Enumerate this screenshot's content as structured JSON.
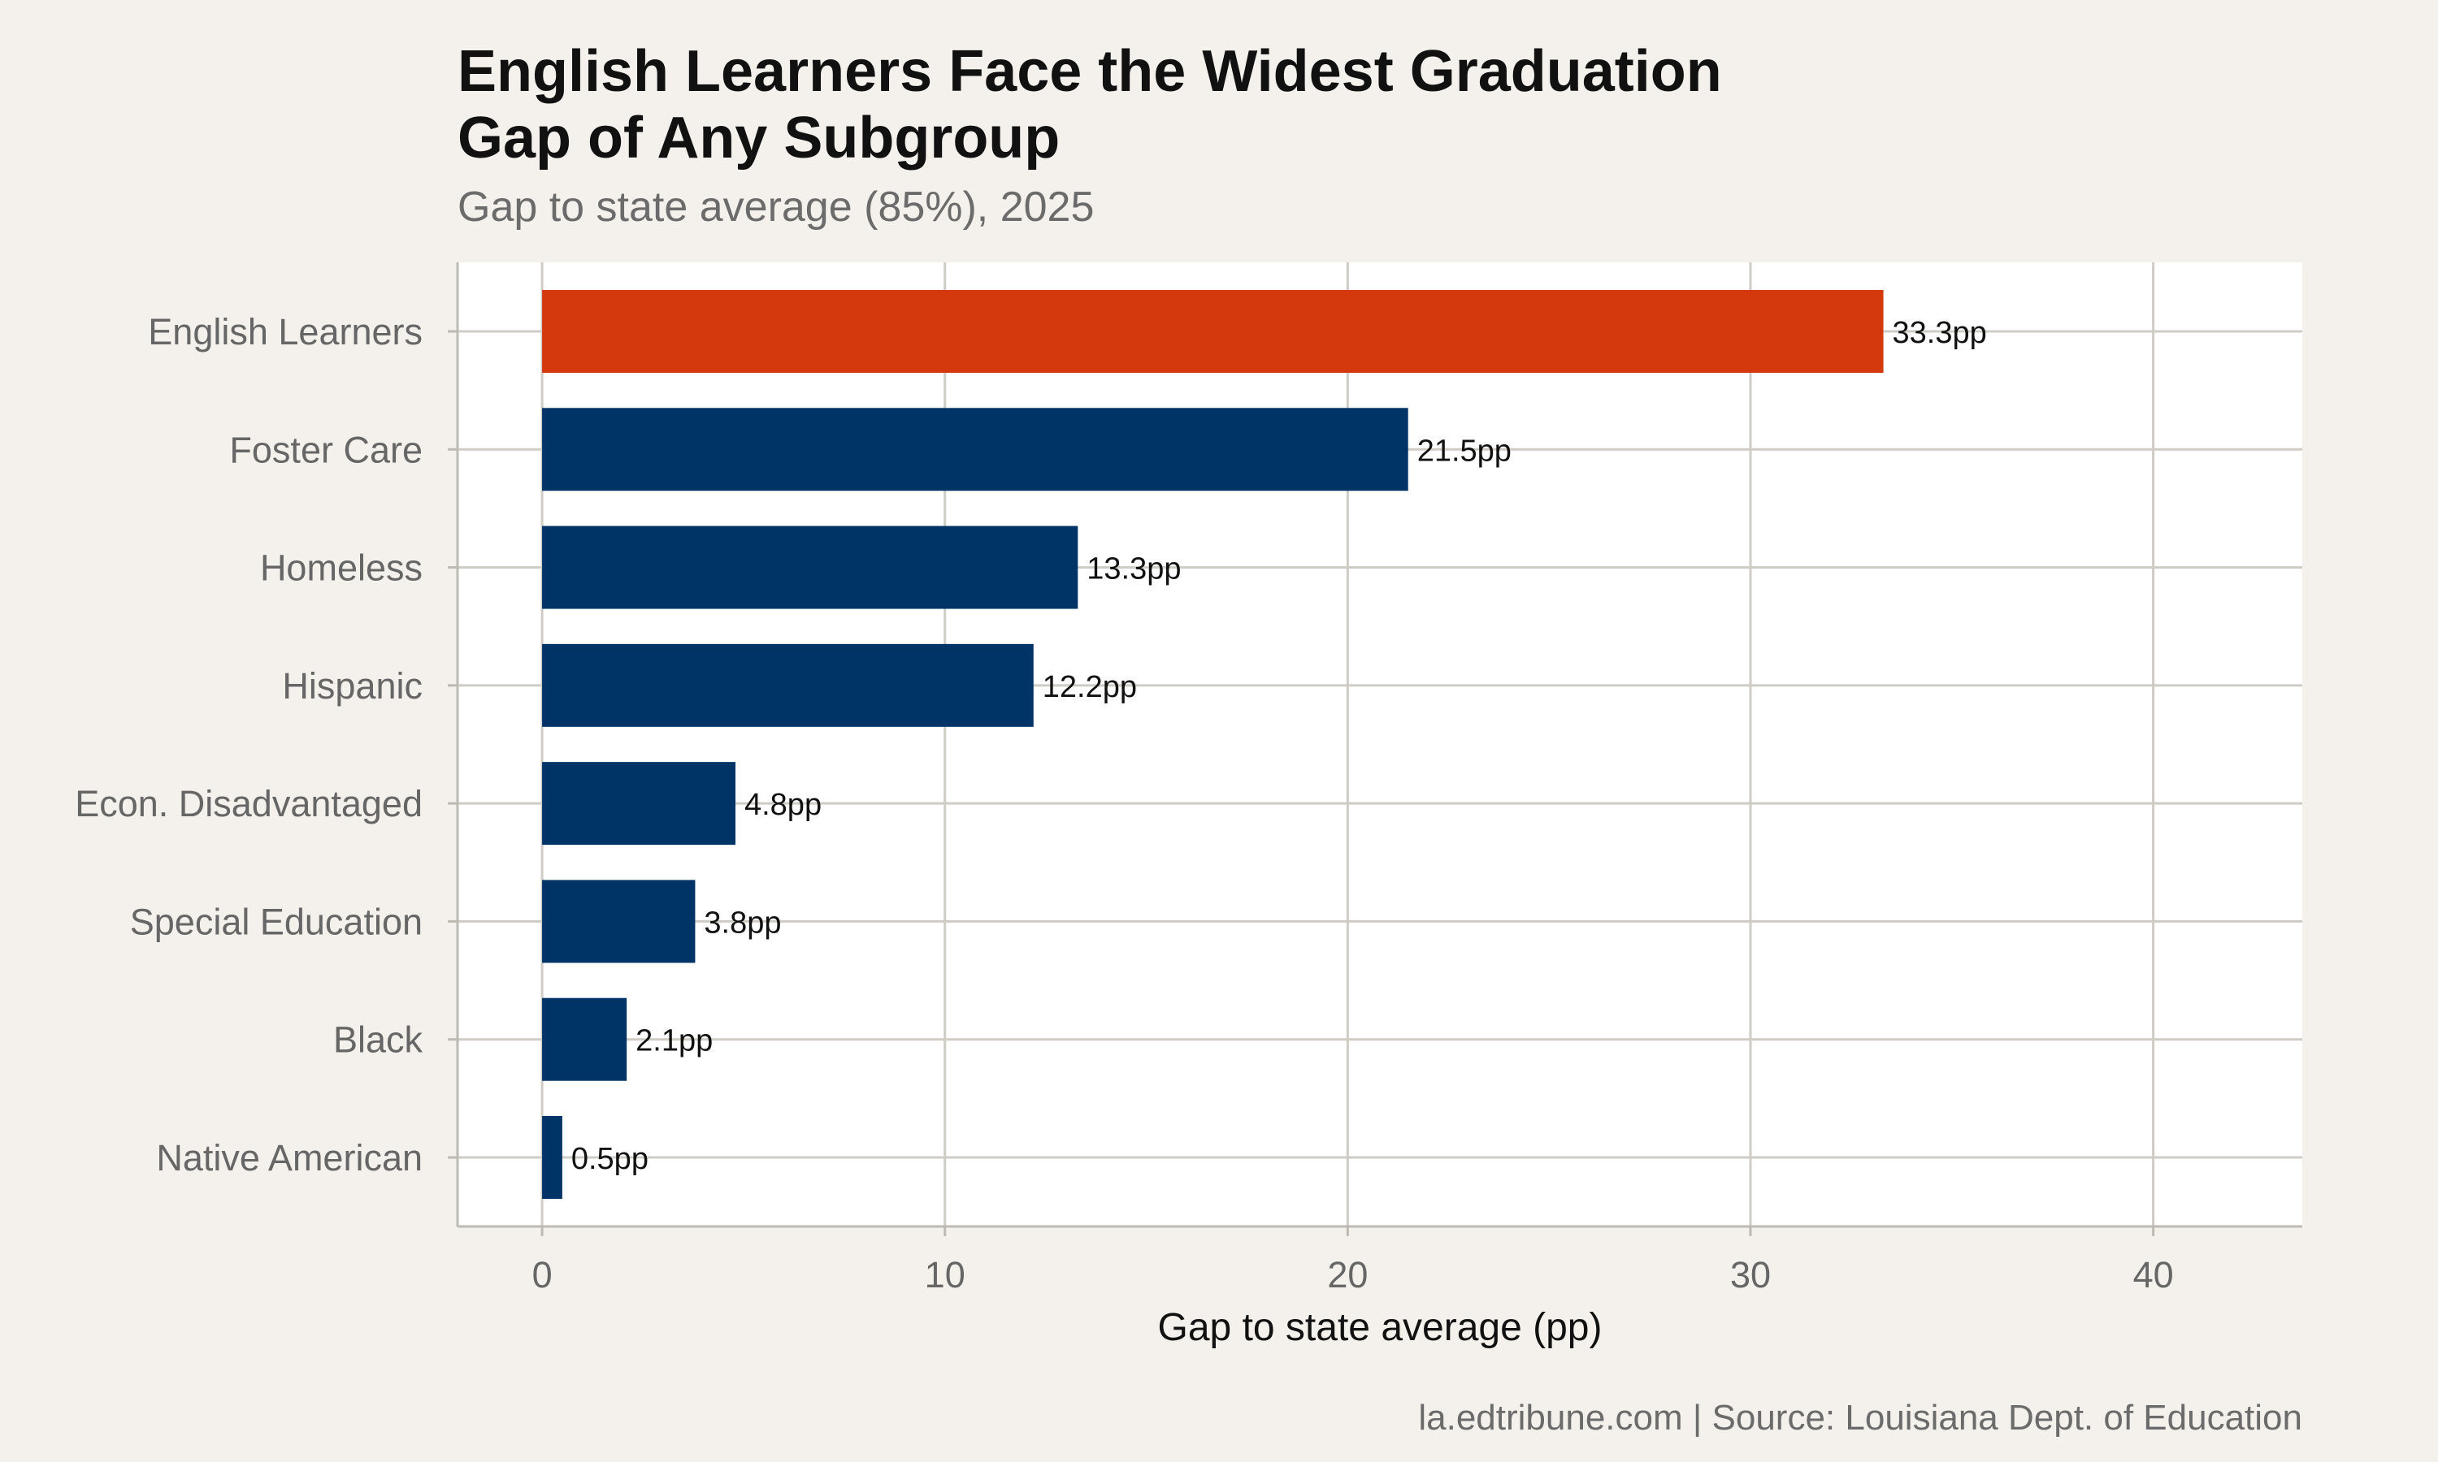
{
  "chart_data": {
    "type": "bar",
    "orientation": "horizontal",
    "title_line1": "English Learners Face the Widest Graduation",
    "title_line2": "Gap of Any Subgroup",
    "subtitle": "Gap to state average (85%), 2025",
    "xlabel": "Gap to state average (pp)",
    "ylabel": "",
    "caption": "la.edtribune.com | Source: Louisiana Dept. of Education",
    "categories": [
      "English Learners",
      "Foster Care",
      "Homeless",
      "Hispanic",
      "Econ. Disadvantaged",
      "Special Education",
      "Black",
      "Native American"
    ],
    "values": [
      33.3,
      21.5,
      13.3,
      12.2,
      4.8,
      3.8,
      2.1,
      0.5
    ],
    "data_labels": [
      "33.3pp",
      "21.5pp",
      "13.3pp",
      "12.2pp",
      "4.8pp",
      "3.8pp",
      "2.1pp",
      "0.5pp"
    ],
    "highlight_index": 0,
    "xlim": [
      -2.1,
      43.7
    ],
    "xticks": [
      0,
      10,
      20,
      30,
      40
    ],
    "xtick_labels": [
      "0",
      "10",
      "20",
      "30",
      "40"
    ],
    "grid": true,
    "legend": "none",
    "colors": {
      "highlight": "#d4380d",
      "bar": "#003366",
      "panel": "#ffffff",
      "page": "#f4f1ec",
      "grid": "#cfccc5"
    }
  }
}
